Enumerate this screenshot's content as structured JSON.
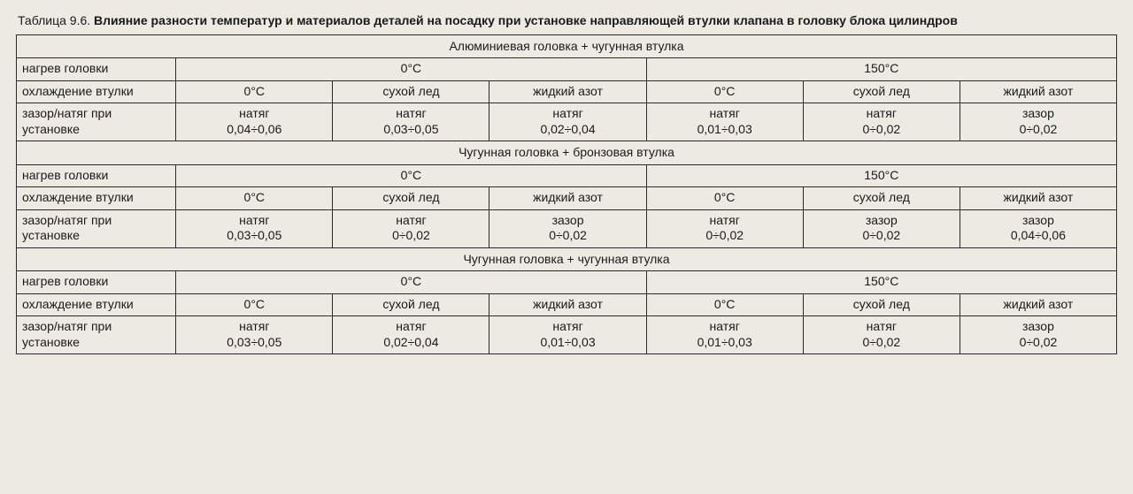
{
  "caption": {
    "lead": "Таблица 9.6. ",
    "title": "Влияние разности температур и материалов деталей на посадку при установке направляющей втулки клапана в головку блока цилиндров"
  },
  "row_labels": {
    "heat": "нагрев головки",
    "cool": "охлаждение втулки",
    "fit": "зазор/натяг при установке"
  },
  "cool_options": [
    "0°C",
    "сухой лед",
    "жидкий азот",
    "0°C",
    "сухой лед",
    "жидкий азот"
  ],
  "heat_options": [
    "0°C",
    "150°C"
  ],
  "sections": [
    {
      "title": "Алюминиевая головка + чугунная втулка",
      "fit": [
        {
          "t": "натяг",
          "v": "0,04÷0,06"
        },
        {
          "t": "натяг",
          "v": "0,03÷0,05"
        },
        {
          "t": "натяг",
          "v": "0,02÷0,04"
        },
        {
          "t": "натяг",
          "v": "0,01÷0,03"
        },
        {
          "t": "натяг",
          "v": "0÷0,02"
        },
        {
          "t": "зазор",
          "v": "0÷0,02"
        }
      ]
    },
    {
      "title": "Чугунная головка + бронзовая втулка",
      "fit": [
        {
          "t": "натяг",
          "v": "0,03÷0,05"
        },
        {
          "t": "натяг",
          "v": "0÷0,02"
        },
        {
          "t": "зазор",
          "v": "0÷0,02"
        },
        {
          "t": "натяг",
          "v": "0÷0,02"
        },
        {
          "t": "зазор",
          "v": "0÷0,02"
        },
        {
          "t": "зазор",
          "v": "0,04÷0,06"
        }
      ]
    },
    {
      "title": "Чугунная головка + чугунная втулка",
      "fit": [
        {
          "t": "натяг",
          "v": "0,03÷0,05"
        },
        {
          "t": "натяг",
          "v": "0,02÷0,04"
        },
        {
          "t": "натяг",
          "v": "0,01÷0,03"
        },
        {
          "t": "натяг",
          "v": "0,01÷0,03"
        },
        {
          "t": "натяг",
          "v": "0÷0,02"
        },
        {
          "t": "зазор",
          "v": "0÷0,02"
        }
      ]
    }
  ]
}
